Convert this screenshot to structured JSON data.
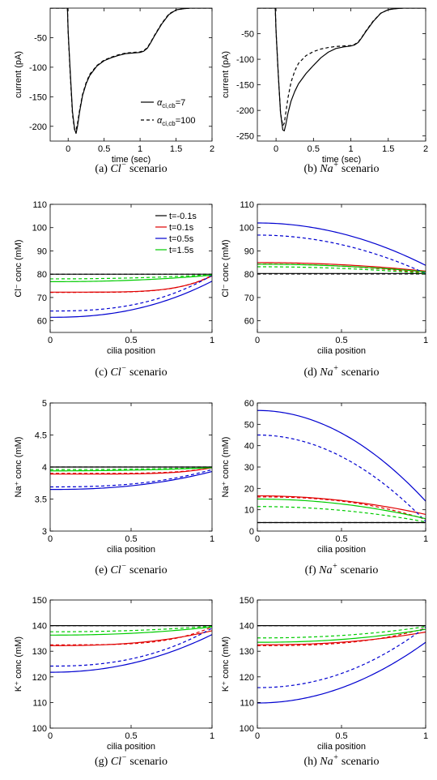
{
  "colors": {
    "t=-0.1s": "#000000",
    "t=0.1s": "#e00000",
    "t=0.5s": "#0000d0",
    "t=1.5s": "#00cc00"
  },
  "chart_data": [
    {
      "id": "a",
      "type": "line",
      "caption": {
        "label": "(a)",
        "ion": "Cl",
        "sup": "−",
        "suffix": "scenario"
      },
      "xlabel": "time (sec)",
      "ylabel": "current (pA)",
      "xlim": [
        -0.25,
        2
      ],
      "ylim": [
        -225,
        0
      ],
      "xticks": [
        0,
        0.5,
        1,
        1.5,
        2
      ],
      "yticks": [
        -200,
        -150,
        -100,
        -50
      ],
      "legend": {
        "position": "bottom-right",
        "entries": [
          {
            "label": "α",
            "sub": "ci,cb",
            "value": "=7",
            "dash": false
          },
          {
            "label": "α",
            "sub": "ci,cb",
            "value": "=100",
            "dash": true
          }
        ]
      },
      "series": [
        {
          "name": "α_ci,cb=7",
          "color": "#000000",
          "dash": false,
          "x": [
            -0.25,
            -0.01,
            0.0,
            0.03,
            0.06,
            0.09,
            0.11,
            0.13,
            0.16,
            0.2,
            0.25,
            0.3,
            0.4,
            0.5,
            0.6,
            0.7,
            0.8,
            0.9,
            1.0,
            1.05,
            1.1,
            1.15,
            1.2,
            1.3,
            1.4,
            1.5,
            1.6,
            1.7,
            2.0
          ],
          "y": [
            0,
            0,
            -40,
            -110,
            -175,
            -205,
            -212,
            -200,
            -175,
            -148,
            -128,
            -114,
            -98,
            -89,
            -84,
            -80,
            -77,
            -76,
            -75,
            -73,
            -68,
            -58,
            -47,
            -27,
            -11,
            -3,
            -1,
            0,
            0
          ]
        },
        {
          "name": "α_ci,cb=100",
          "color": "#000000",
          "dash": true,
          "x": [
            -0.25,
            -0.01,
            0.0,
            0.03,
            0.06,
            0.09,
            0.11,
            0.13,
            0.16,
            0.2,
            0.25,
            0.3,
            0.4,
            0.5,
            0.6,
            0.7,
            0.8,
            0.9,
            1.0,
            1.05,
            1.1,
            1.15,
            1.2,
            1.3,
            1.4,
            1.5,
            1.6,
            1.7,
            2.0
          ],
          "y": [
            0,
            0,
            -42,
            -115,
            -180,
            -207,
            -206,
            -195,
            -172,
            -146,
            -126,
            -112,
            -97,
            -88,
            -83,
            -79,
            -76,
            -75,
            -74,
            -72,
            -67,
            -57,
            -46,
            -26,
            -10,
            -3,
            -1,
            0,
            0
          ]
        }
      ]
    },
    {
      "id": "b",
      "type": "line",
      "caption": {
        "label": "(b)",
        "ion": "Na",
        "sup": "+",
        "suffix": "scenario"
      },
      "xlabel": "time (sec)",
      "ylabel": "current (pA)",
      "xlim": [
        -0.25,
        2
      ],
      "ylim": [
        -260,
        0
      ],
      "xticks": [
        0,
        0.5,
        1,
        1.5,
        2
      ],
      "yticks": [
        -250,
        -200,
        -150,
        -100,
        -50
      ],
      "series": [
        {
          "name": "α_ci,cb=7",
          "color": "#000000",
          "dash": false,
          "x": [
            -0.25,
            -0.01,
            0.0,
            0.03,
            0.06,
            0.09,
            0.11,
            0.13,
            0.16,
            0.2,
            0.25,
            0.3,
            0.4,
            0.5,
            0.6,
            0.7,
            0.8,
            0.9,
            1.0,
            1.05,
            1.1,
            1.15,
            1.2,
            1.3,
            1.4,
            1.5,
            1.6,
            1.7,
            2.0
          ],
          "y": [
            0,
            0,
            -45,
            -130,
            -205,
            -238,
            -240,
            -228,
            -205,
            -182,
            -163,
            -148,
            -128,
            -112,
            -97,
            -86,
            -79,
            -76,
            -74,
            -72,
            -67,
            -57,
            -46,
            -26,
            -10,
            -3,
            -1,
            0,
            0
          ]
        },
        {
          "name": "α_ci,cb=100",
          "color": "#000000",
          "dash": true,
          "x": [
            -0.25,
            -0.01,
            0.0,
            0.03,
            0.06,
            0.09,
            0.11,
            0.13,
            0.16,
            0.2,
            0.25,
            0.3,
            0.4,
            0.5,
            0.6,
            0.7,
            0.8,
            0.9,
            1.0,
            1.05,
            1.1,
            1.15,
            1.2,
            1.3,
            1.4,
            1.5,
            1.6,
            1.7,
            2.0
          ],
          "y": [
            0,
            0,
            -45,
            -130,
            -205,
            -230,
            -225,
            -205,
            -175,
            -145,
            -123,
            -108,
            -93,
            -85,
            -80,
            -77,
            -75,
            -74,
            -73,
            -71,
            -66,
            -56,
            -45,
            -25,
            -10,
            -3,
            -1,
            0,
            0
          ]
        }
      ]
    },
    {
      "id": "c",
      "type": "line",
      "caption": {
        "label": "(c)",
        "ion": "Cl",
        "sup": "−",
        "suffix": "scenario"
      },
      "xlabel": "cilia position",
      "ylabel": "Cl⁻ conc (mM)",
      "xlim": [
        0,
        1
      ],
      "ylim": [
        55,
        110
      ],
      "xticks": [
        0,
        0.5,
        1
      ],
      "yticks": [
        60,
        70,
        80,
        90,
        100,
        110
      ],
      "legend": {
        "position": "top-right",
        "entries": [
          {
            "label": "t=-0.1s",
            "color": "#000000"
          },
          {
            "label": "t=0.1s",
            "color": "#e00000"
          },
          {
            "label": "t=0.5s",
            "color": "#0000d0"
          },
          {
            "label": "t=1.5s",
            "color": "#00cc00"
          }
        ]
      },
      "series": [
        {
          "name": "t=-0.1s",
          "color": "#000000",
          "dash": false,
          "start": 80,
          "end": 80,
          "k": 2
        },
        {
          "name": "t=-0.1s",
          "color": "#000000",
          "dash": true,
          "start": 80,
          "end": 80,
          "k": 2
        },
        {
          "name": "t=0.1s",
          "color": "#e00000",
          "dash": false,
          "start": 72.3,
          "end": 79.3,
          "k": 5
        },
        {
          "name": "t=0.1s",
          "color": "#e00000",
          "dash": true,
          "start": 72.2,
          "end": 79.5,
          "k": 5
        },
        {
          "name": "t=0.5s",
          "color": "#0000d0",
          "dash": false,
          "start": 61.5,
          "end": 77.0,
          "k": 2.3
        },
        {
          "name": "t=0.5s",
          "color": "#0000d0",
          "dash": true,
          "start": 64.2,
          "end": 79.5,
          "k": 2.6
        },
        {
          "name": "t=1.5s",
          "color": "#00cc00",
          "dash": false,
          "start": 76.8,
          "end": 79.6,
          "k": 2.2
        },
        {
          "name": "t=1.5s",
          "color": "#00cc00",
          "dash": true,
          "start": 78.0,
          "end": 79.8,
          "k": 2.2
        }
      ]
    },
    {
      "id": "d",
      "type": "line",
      "caption": {
        "label": "(d)",
        "ion": "Na",
        "sup": "+",
        "suffix": "scenario"
      },
      "xlabel": "cilia position",
      "ylabel": "Cl⁻ conc (mM)",
      "xlim": [
        0,
        1
      ],
      "ylim": [
        55,
        110
      ],
      "xticks": [
        0,
        0.5,
        1
      ],
      "yticks": [
        60,
        70,
        80,
        90,
        100,
        110
      ],
      "series": [
        {
          "name": "t=-0.1s",
          "color": "#000000",
          "dash": false,
          "start": 80.3,
          "end": 80.3,
          "k": 2
        },
        {
          "name": "t=-0.1s",
          "color": "#000000",
          "dash": true,
          "start": 80.1,
          "end": 80.1,
          "k": 2
        },
        {
          "name": "t=0.1s",
          "color": "#e00000",
          "dash": false,
          "start": 85.0,
          "end": 81.3,
          "k": 2
        },
        {
          "name": "t=0.1s",
          "color": "#e00000",
          "dash": true,
          "start": 84.4,
          "end": 80.5,
          "k": 2
        },
        {
          "name": "t=0.5s",
          "color": "#0000d0",
          "dash": false,
          "start": 102.0,
          "end": 83.8,
          "k": 2
        },
        {
          "name": "t=0.5s",
          "color": "#0000d0",
          "dash": true,
          "start": 96.8,
          "end": 80.3,
          "k": 2
        },
        {
          "name": "t=1.5s",
          "color": "#00cc00",
          "dash": false,
          "start": 84.3,
          "end": 81.0,
          "k": 2
        },
        {
          "name": "t=1.5s",
          "color": "#00cc00",
          "dash": true,
          "start": 83.2,
          "end": 80.3,
          "k": 2
        }
      ]
    },
    {
      "id": "e",
      "type": "line",
      "caption": {
        "label": "(e)",
        "ion": "Cl",
        "sup": "−",
        "suffix": "scenario"
      },
      "xlabel": "cilia position",
      "ylabel": "Na⁺ conc (mM)",
      "xlim": [
        0,
        1
      ],
      "ylim": [
        3,
        5
      ],
      "xticks": [
        0,
        0.5,
        1
      ],
      "yticks": [
        3,
        3.5,
        4,
        4.5,
        5
      ],
      "series": [
        {
          "name": "t=-0.1s",
          "color": "#000000",
          "dash": false,
          "start": 4.0,
          "end": 4.0,
          "k": 2
        },
        {
          "name": "t=-0.1s",
          "color": "#000000",
          "dash": true,
          "start": 4.0,
          "end": 4.0,
          "k": 2
        },
        {
          "name": "t=0.1s",
          "color": "#e00000",
          "dash": false,
          "start": 3.89,
          "end": 3.99,
          "k": 5
        },
        {
          "name": "t=0.1s",
          "color": "#e00000",
          "dash": true,
          "start": 3.9,
          "end": 3.99,
          "k": 5
        },
        {
          "name": "t=0.5s",
          "color": "#0000d0",
          "dash": false,
          "start": 3.65,
          "end": 3.93,
          "k": 2.3
        },
        {
          "name": "t=0.5s",
          "color": "#0000d0",
          "dash": true,
          "start": 3.69,
          "end": 3.96,
          "k": 2.6
        },
        {
          "name": "t=1.5s",
          "color": "#00cc00",
          "dash": false,
          "start": 3.94,
          "end": 3.99,
          "k": 2.2
        },
        {
          "name": "t=1.5s",
          "color": "#00cc00",
          "dash": true,
          "start": 3.96,
          "end": 3.99,
          "k": 2.2
        }
      ]
    },
    {
      "id": "f",
      "type": "line",
      "caption": {
        "label": "(f)",
        "ion": "Na",
        "sup": "+",
        "suffix": "scenario"
      },
      "xlabel": "cilia position",
      "ylabel": "Na⁺ conc (mM)",
      "xlim": [
        0,
        1
      ],
      "ylim": [
        0,
        60
      ],
      "xticks": [
        0,
        0.5,
        1
      ],
      "yticks": [
        0,
        10,
        20,
        30,
        40,
        50,
        60
      ],
      "series": [
        {
          "name": "t=-0.1s",
          "color": "#000000",
          "dash": false,
          "start": 4.0,
          "end": 4.0,
          "k": 2
        },
        {
          "name": "t=-0.1s",
          "color": "#000000",
          "dash": true,
          "start": 4.0,
          "end": 4.0,
          "k": 2
        },
        {
          "name": "t=0.1s",
          "color": "#e00000",
          "dash": false,
          "start": 16.5,
          "end": 7.8,
          "k": 2
        },
        {
          "name": "t=0.1s",
          "color": "#e00000",
          "dash": true,
          "start": 16.0,
          "end": 5.5,
          "k": 2.4
        },
        {
          "name": "t=0.5s",
          "color": "#0000d0",
          "dash": false,
          "start": 56.5,
          "end": 14.0,
          "k": 2
        },
        {
          "name": "t=0.5s",
          "color": "#0000d0",
          "dash": true,
          "start": 45.0,
          "end": 4.5,
          "k": 2
        },
        {
          "name": "t=1.5s",
          "color": "#00cc00",
          "dash": false,
          "start": 15.0,
          "end": 5.8,
          "k": 2
        },
        {
          "name": "t=1.5s",
          "color": "#00cc00",
          "dash": true,
          "start": 11.5,
          "end": 4.3,
          "k": 2
        }
      ]
    },
    {
      "id": "g",
      "type": "line",
      "caption": {
        "label": "(g)",
        "ion": "Cl",
        "sup": "−",
        "suffix": "scenario"
      },
      "xlabel": "cilia position",
      "ylabel": "K⁺ conc (mM)",
      "xlim": [
        0,
        1
      ],
      "ylim": [
        100,
        150
      ],
      "xticks": [
        0,
        0.5,
        1
      ],
      "yticks": [
        100,
        110,
        120,
        130,
        140,
        150
      ],
      "series": [
        {
          "name": "t=-0.1s",
          "color": "#000000",
          "dash": false,
          "start": 140,
          "end": 140,
          "k": 2
        },
        {
          "name": "t=-0.1s",
          "color": "#000000",
          "dash": true,
          "start": 140,
          "end": 140,
          "k": 2
        },
        {
          "name": "t=0.1s",
          "color": "#e00000",
          "dash": false,
          "start": 132.2,
          "end": 138.0,
          "k": 2.6
        },
        {
          "name": "t=0.1s",
          "color": "#e00000",
          "dash": true,
          "start": 132.5,
          "end": 139.5,
          "k": 4
        },
        {
          "name": "t=0.5s",
          "color": "#0000d0",
          "dash": false,
          "start": 121.8,
          "end": 136.5,
          "k": 2.1
        },
        {
          "name": "t=0.5s",
          "color": "#0000d0",
          "dash": true,
          "start": 124.2,
          "end": 139.0,
          "k": 2.4
        },
        {
          "name": "t=1.5s",
          "color": "#00cc00",
          "dash": false,
          "start": 136.3,
          "end": 139.5,
          "k": 2.2
        },
        {
          "name": "t=1.5s",
          "color": "#00cc00",
          "dash": true,
          "start": 137.6,
          "end": 139.8,
          "k": 2.2
        }
      ]
    },
    {
      "id": "h",
      "type": "line",
      "caption": {
        "label": "(h)",
        "ion": "Na",
        "sup": "+",
        "suffix": "scenario"
      },
      "xlabel": "cilia position",
      "ylabel": "K⁺ conc (mM)",
      "xlim": [
        0,
        1
      ],
      "ylim": [
        100,
        150
      ],
      "xticks": [
        0,
        0.5,
        1
      ],
      "yticks": [
        100,
        110,
        120,
        130,
        140,
        150
      ],
      "series": [
        {
          "name": "t=-0.1s",
          "color": "#000000",
          "dash": false,
          "start": 140,
          "end": 140,
          "k": 2
        },
        {
          "name": "t=-0.1s",
          "color": "#000000",
          "dash": true,
          "start": 140,
          "end": 140,
          "k": 2
        },
        {
          "name": "t=0.1s",
          "color": "#e00000",
          "dash": false,
          "start": 132.5,
          "end": 137.5,
          "k": 2.3
        },
        {
          "name": "t=0.1s",
          "color": "#e00000",
          "dash": true,
          "start": 132.2,
          "end": 139.0,
          "k": 2.8
        },
        {
          "name": "t=0.5s",
          "color": "#0000d0",
          "dash": false,
          "start": 109.8,
          "end": 133.5,
          "k": 2.0
        },
        {
          "name": "t=0.5s",
          "color": "#0000d0",
          "dash": true,
          "start": 115.8,
          "end": 139.5,
          "k": 2.1
        },
        {
          "name": "t=1.5s",
          "color": "#00cc00",
          "dash": false,
          "start": 133.5,
          "end": 138.6,
          "k": 2.2
        },
        {
          "name": "t=1.5s",
          "color": "#00cc00",
          "dash": true,
          "start": 135.2,
          "end": 139.6,
          "k": 2.2
        }
      ]
    }
  ]
}
